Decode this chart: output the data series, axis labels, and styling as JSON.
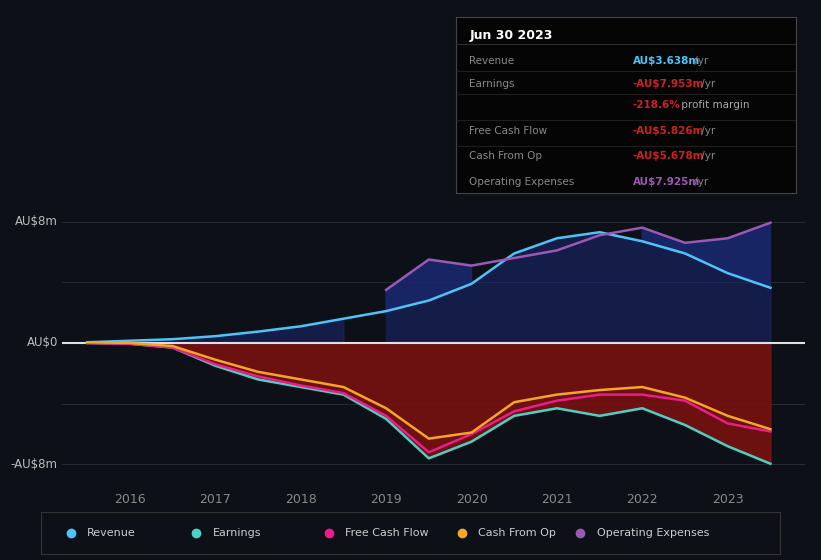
{
  "bg_color": "#0d1117",
  "grid_color": "#2a2f3a",
  "zero_line_color": "#e0e0e0",
  "ylim": [
    -9.5,
    9.5
  ],
  "xlim": [
    2015.2,
    2023.9
  ],
  "yticks_labeled": [
    -8,
    0,
    8
  ],
  "ytick_labels": [
    "-AU$8m",
    "AU$0",
    "AU$8m"
  ],
  "xtick_positions": [
    2016,
    2017,
    2018,
    2019,
    2020,
    2021,
    2022,
    2023
  ],
  "xtick_labels": [
    "2016",
    "2017",
    "2018",
    "2019",
    "2020",
    "2021",
    "2022",
    "2023"
  ],
  "years": [
    2015.5,
    2016.0,
    2016.5,
    2017.0,
    2017.5,
    2018.0,
    2018.5,
    2019.0,
    2019.5,
    2020.0,
    2020.5,
    2021.0,
    2021.5,
    2022.0,
    2022.5,
    2023.0,
    2023.5
  ],
  "revenue": [
    0.05,
    0.15,
    0.25,
    0.45,
    0.75,
    1.1,
    1.6,
    2.1,
    2.8,
    3.9,
    5.9,
    6.9,
    7.3,
    6.7,
    5.9,
    4.6,
    3.638
  ],
  "earnings": [
    0.0,
    -0.05,
    -0.3,
    -1.5,
    -2.4,
    -2.9,
    -3.4,
    -5.0,
    -7.6,
    -6.5,
    -4.8,
    -4.3,
    -4.8,
    -4.3,
    -5.4,
    -6.8,
    -7.953
  ],
  "fcf": [
    0.0,
    -0.05,
    -0.3,
    -1.4,
    -2.2,
    -2.8,
    -3.3,
    -4.8,
    -7.2,
    -6.0,
    -4.5,
    -3.8,
    -3.4,
    -3.4,
    -3.8,
    -5.3,
    -5.826
  ],
  "cash_op": [
    0.05,
    0.0,
    -0.2,
    -1.1,
    -1.9,
    -2.4,
    -2.9,
    -4.3,
    -6.3,
    -5.9,
    -3.9,
    -3.4,
    -3.1,
    -2.9,
    -3.6,
    -4.8,
    -5.678
  ],
  "op_exp": [
    0.0,
    0.0,
    0.0,
    0.0,
    0.0,
    0.0,
    0.0,
    3.5,
    5.5,
    5.1,
    5.6,
    6.1,
    7.1,
    7.6,
    6.6,
    6.9,
    7.925
  ],
  "revenue_color": "#4fc3f7",
  "earnings_color": "#4dd0c4",
  "fcf_color": "#e91e8c",
  "cash_op_color": "#f5a623",
  "op_exp_color": "#9b59b6",
  "title_box_text": "Jun 30 2023",
  "info_items": [
    {
      "label": "Revenue",
      "value": "AU$3.638m",
      "suffix": " /yr",
      "val_color": "#4fc3f7",
      "suffix_color": "#888888"
    },
    {
      "label": "Earnings",
      "value": "-AU$7.953m",
      "suffix": " /yr",
      "val_color": "#cc2222",
      "suffix_color": "#888888"
    },
    {
      "label": "",
      "value": "-218.6%",
      "suffix": " profit margin",
      "val_color": "#cc2222",
      "suffix_color": "#aaaaaa"
    },
    {
      "label": "Free Cash Flow",
      "value": "-AU$5.826m",
      "suffix": " /yr",
      "val_color": "#cc2222",
      "suffix_color": "#888888"
    },
    {
      "label": "Cash From Op",
      "value": "-AU$5.678m",
      "suffix": " /yr",
      "val_color": "#cc2222",
      "suffix_color": "#888888"
    },
    {
      "label": "Operating Expenses",
      "value": "AU$7.925m",
      "suffix": " /yr",
      "val_color": "#9b59b6",
      "suffix_color": "#888888"
    }
  ],
  "legend_items": [
    {
      "label": "Revenue",
      "color": "#4fc3f7"
    },
    {
      "label": "Earnings",
      "color": "#4dd0c4"
    },
    {
      "label": "Free Cash Flow",
      "color": "#e91e8c"
    },
    {
      "label": "Cash From Op",
      "color": "#f5a623"
    },
    {
      "label": "Operating Expenses",
      "color": "#9b59b6"
    }
  ]
}
